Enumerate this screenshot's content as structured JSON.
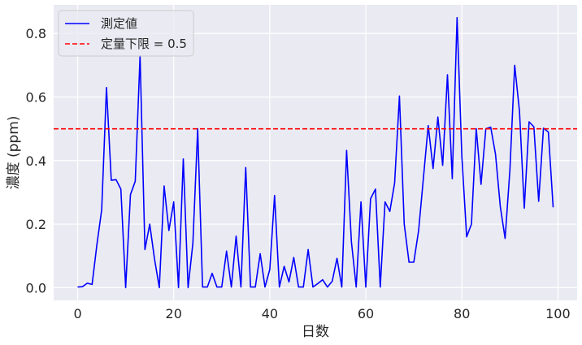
{
  "chart_data": {
    "type": "line",
    "xlabel": "日数",
    "ylabel": "濃度 (ppm)",
    "xlim": [
      -5,
      104
    ],
    "ylim": [
      -0.04,
      0.89
    ],
    "xticks": [
      0,
      20,
      40,
      60,
      80,
      100
    ],
    "xtick_labels": [
      "0",
      "20",
      "40",
      "60",
      "80",
      "100"
    ],
    "yticks": [
      0.0,
      0.2,
      0.4,
      0.6,
      0.8
    ],
    "ytick_labels": [
      "0.0",
      "0.2",
      "0.4",
      "0.6",
      "0.8"
    ],
    "grid": true,
    "legend_placement": "upper-left",
    "series": [
      {
        "name": "測定値",
        "color": "#0000ff",
        "x": [
          0,
          1,
          2,
          3,
          4,
          5,
          6,
          7,
          8,
          9,
          10,
          11,
          12,
          13,
          14,
          15,
          16,
          17,
          18,
          19,
          20,
          21,
          22,
          23,
          24,
          25,
          26,
          27,
          28,
          29,
          30,
          31,
          32,
          33,
          34,
          35,
          36,
          37,
          38,
          39,
          40,
          41,
          42,
          43,
          44,
          45,
          46,
          47,
          48,
          49,
          50,
          51,
          52,
          53,
          54,
          55,
          56,
          57,
          58,
          59,
          60,
          61,
          62,
          63,
          64,
          65,
          66,
          67,
          68,
          69,
          70,
          71,
          72,
          73,
          74,
          75,
          76,
          77,
          78,
          79,
          80,
          81,
          82,
          83,
          84,
          85,
          86,
          87,
          88,
          89,
          90,
          91,
          92,
          93,
          94,
          95,
          96,
          97,
          98,
          99
        ],
        "values": [
          0.002,
          0.003,
          0.014,
          0.01,
          0.135,
          0.245,
          0.63,
          0.338,
          0.34,
          0.31,
          0.0,
          0.293,
          0.335,
          0.73,
          0.12,
          0.2,
          0.09,
          0.0,
          0.32,
          0.18,
          0.27,
          0.0,
          0.405,
          0.0,
          0.14,
          0.5,
          0.002,
          0.002,
          0.045,
          0.002,
          0.002,
          0.115,
          0.002,
          0.162,
          0.002,
          0.378,
          0.002,
          0.002,
          0.107,
          0.002,
          0.057,
          0.29,
          0.002,
          0.067,
          0.018,
          0.095,
          0.002,
          0.002,
          0.12,
          0.002,
          0.013,
          0.025,
          0.002,
          0.02,
          0.092,
          0.002,
          0.432,
          0.145,
          0.002,
          0.27,
          0.002,
          0.28,
          0.31,
          0.002,
          0.27,
          0.24,
          0.33,
          0.603,
          0.2,
          0.08,
          0.08,
          0.18,
          0.345,
          0.51,
          0.375,
          0.537,
          0.385,
          0.67,
          0.343,
          0.85,
          0.413,
          0.16,
          0.2,
          0.5,
          0.325,
          0.5,
          0.505,
          0.42,
          0.255,
          0.155,
          0.37,
          0.7,
          0.555,
          0.25,
          0.522,
          0.506,
          0.272,
          0.502,
          0.49,
          0.253
        ]
      },
      {
        "name": "定量下限 = 0.5",
        "color": "#ff0000",
        "style": "dashed",
        "y": 0.5
      }
    ]
  }
}
